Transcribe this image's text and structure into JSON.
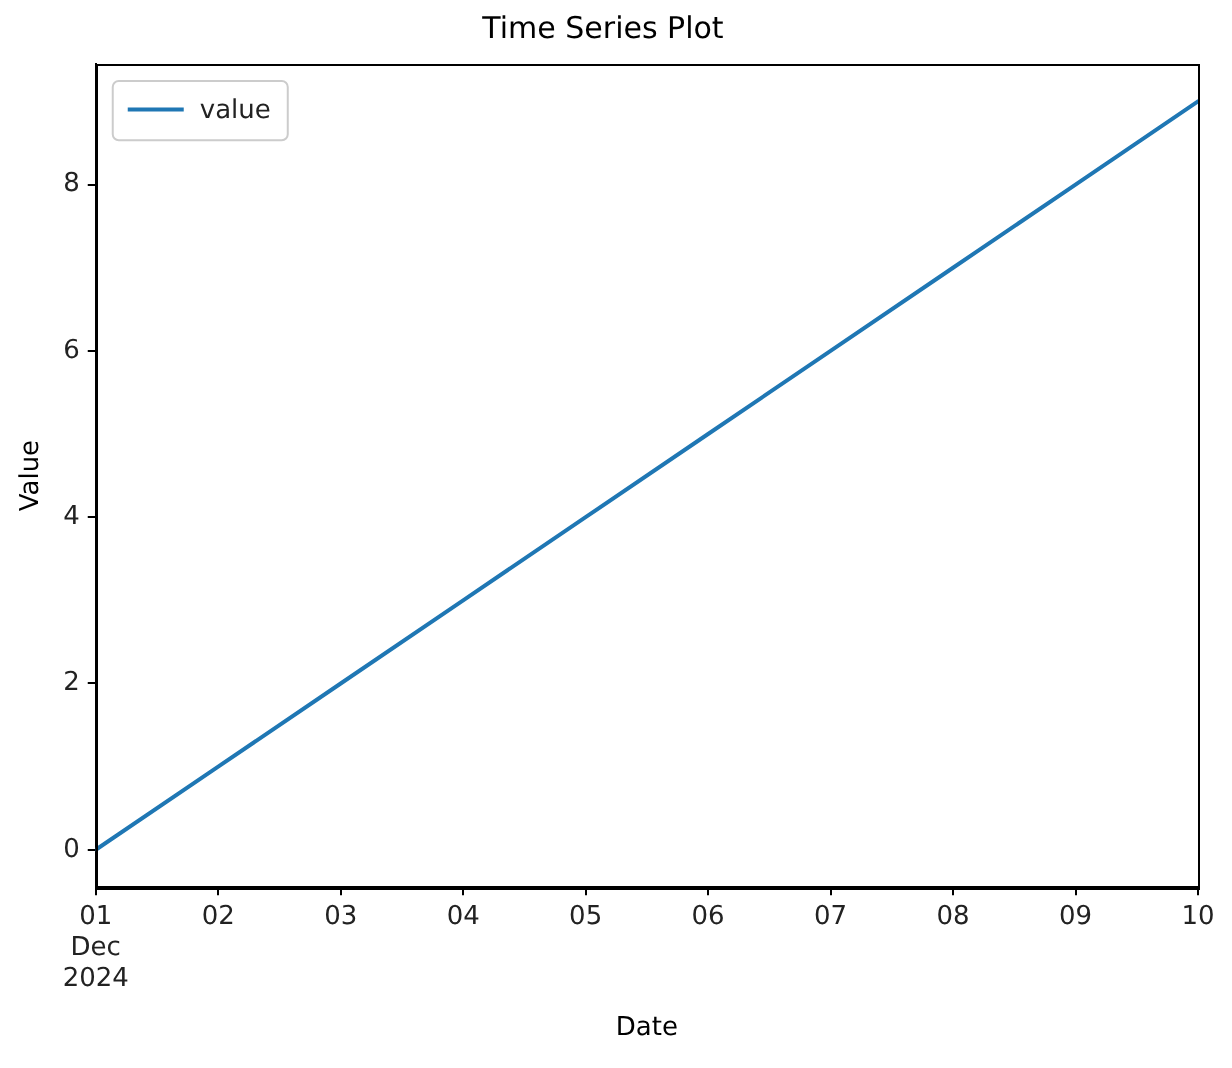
{
  "chart_data": {
    "type": "line",
    "title": "Time Series Plot",
    "xlabel": "Date",
    "ylabel": "Value",
    "x": [
      "2024-12-01",
      "2024-12-02",
      "2024-12-03",
      "2024-12-04",
      "2024-12-05",
      "2024-12-06",
      "2024-12-07",
      "2024-12-08",
      "2024-12-09",
      "2024-12-10"
    ],
    "series": [
      {
        "name": "value",
        "color": "#1f77b4",
        "values": [
          0,
          1,
          2,
          3,
          4,
          5,
          6,
          7,
          8,
          9
        ]
      }
    ],
    "xlim": [
      "2024-12-01",
      "2024-12-10"
    ],
    "xticks": [
      {
        "value": "2024-12-01",
        "label": "01\nDec\n2024"
      },
      {
        "value": "2024-12-02",
        "label": "02"
      },
      {
        "value": "2024-12-03",
        "label": "03"
      },
      {
        "value": "2024-12-04",
        "label": "04"
      },
      {
        "value": "2024-12-05",
        "label": "05"
      },
      {
        "value": "2024-12-06",
        "label": "06"
      },
      {
        "value": "2024-12-07",
        "label": "07"
      },
      {
        "value": "2024-12-08",
        "label": "08"
      },
      {
        "value": "2024-12-09",
        "label": "09"
      },
      {
        "value": "2024-12-10",
        "label": "10"
      }
    ],
    "ylim": [
      -0.45,
      9.45
    ],
    "yticks": [
      0,
      2,
      4,
      6,
      8
    ],
    "legend": "top left"
  }
}
